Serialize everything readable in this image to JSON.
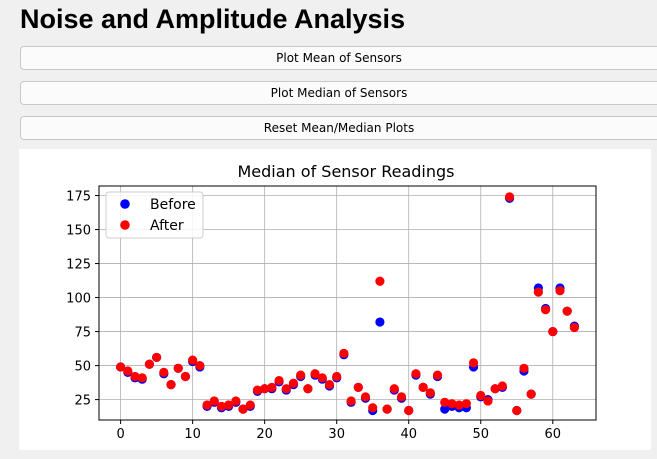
{
  "header": {
    "title": "Noise and Amplitude Analysis"
  },
  "buttons": {
    "mean": "Plot Mean of Sensors",
    "median": "Plot Median of Sensors",
    "reset": "Reset Mean/Median Plots"
  },
  "chart_data": {
    "type": "scatter",
    "title": "Median of Sensor Readings",
    "xlabel": "",
    "ylabel": "",
    "xlim": [
      -3,
      66
    ],
    "ylim": [
      10,
      182
    ],
    "xticks": [
      0,
      10,
      20,
      30,
      40,
      50,
      60
    ],
    "yticks": [
      25,
      50,
      75,
      100,
      125,
      150,
      175
    ],
    "grid": true,
    "legend_position": "top-left",
    "series": [
      {
        "name": "Before",
        "color": "#0000ff",
        "x": [
          0,
          1,
          2,
          3,
          4,
          5,
          6,
          7,
          8,
          9,
          10,
          11,
          12,
          13,
          14,
          15,
          16,
          17,
          18,
          19,
          20,
          21,
          22,
          23,
          24,
          25,
          26,
          27,
          28,
          29,
          30,
          31,
          32,
          33,
          34,
          35,
          36,
          37,
          38,
          39,
          40,
          41,
          42,
          43,
          44,
          45,
          46,
          47,
          48,
          49,
          50,
          51,
          52,
          53,
          54,
          55,
          56,
          57,
          58,
          59,
          60,
          61,
          62,
          63
        ],
        "y": [
          49,
          45,
          41,
          40,
          51,
          56,
          44,
          36,
          48,
          42,
          53,
          49,
          20,
          23,
          19,
          20,
          23,
          18,
          20,
          31,
          33,
          33,
          38,
          32,
          36,
          42,
          33,
          43,
          40,
          35,
          41,
          58,
          23,
          34,
          26,
          17,
          82,
          18,
          32,
          26,
          17,
          43,
          34,
          29,
          42,
          18,
          20,
          19,
          19,
          49,
          27,
          25,
          33,
          34,
          173,
          17,
          46,
          29,
          107,
          92,
          75,
          107,
          90,
          79
        ]
      },
      {
        "name": "After",
        "color": "#ff0000",
        "x": [
          0,
          1,
          2,
          3,
          4,
          5,
          6,
          7,
          8,
          9,
          10,
          11,
          12,
          13,
          14,
          15,
          16,
          17,
          18,
          19,
          20,
          21,
          22,
          23,
          24,
          25,
          26,
          27,
          28,
          29,
          30,
          31,
          32,
          33,
          34,
          35,
          36,
          37,
          38,
          39,
          40,
          41,
          42,
          43,
          44,
          45,
          46,
          47,
          48,
          49,
          50,
          51,
          52,
          53,
          54,
          55,
          56,
          57,
          58,
          59,
          60,
          61,
          62,
          63
        ],
        "y": [
          49,
          46,
          42,
          41,
          51,
          56,
          45,
          36,
          48,
          42,
          54,
          50,
          21,
          24,
          20,
          21,
          24,
          18,
          21,
          32,
          33,
          34,
          39,
          33,
          37,
          43,
          33,
          44,
          41,
          36,
          42,
          59,
          24,
          34,
          27,
          19,
          112,
          18,
          33,
          27,
          17,
          44,
          34,
          30,
          43,
          23,
          22,
          21,
          22,
          52,
          28,
          24,
          33,
          35,
          174,
          17,
          48,
          29,
          104,
          91,
          75,
          105,
          90,
          78
        ]
      }
    ]
  }
}
